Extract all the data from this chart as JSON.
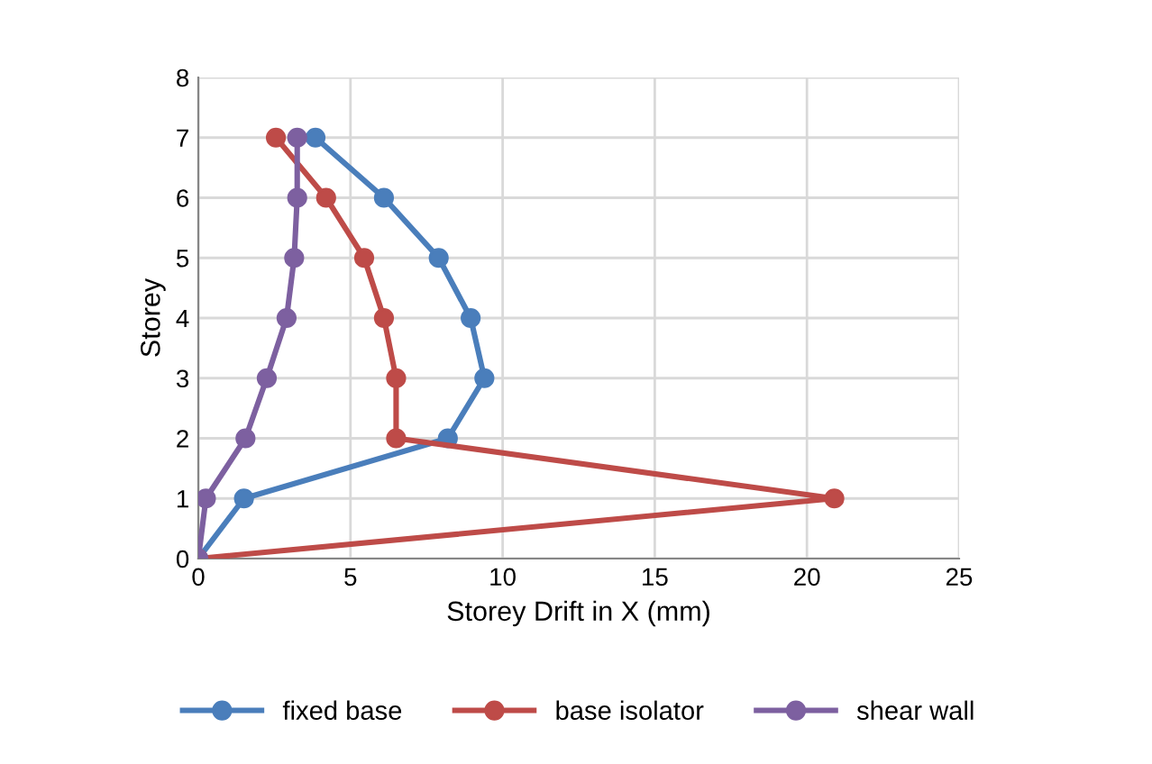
{
  "chart_data": {
    "type": "line",
    "xlabel": "Storey Drift in X (mm)",
    "ylabel": "Storey",
    "xlim": [
      0,
      25
    ],
    "xticks": [
      0,
      5,
      10,
      15,
      20,
      25
    ],
    "ylim": [
      0,
      8
    ],
    "yticks": [
      0,
      1,
      2,
      3,
      4,
      5,
      6,
      7,
      8
    ],
    "grid": true,
    "legend": "bottom",
    "marker": "circle",
    "line_style": "solid",
    "series": [
      {
        "name": "fixed base",
        "color": "#4a7ebb",
        "x": [
          0,
          1.5,
          8.2,
          9.4,
          8.95,
          7.9,
          6.1,
          3.85
        ],
        "values": [
          0,
          1,
          2,
          3,
          4,
          5,
          6,
          7
        ]
      },
      {
        "name": "base isolator",
        "color": "#be4b48",
        "x": [
          0,
          20.9,
          6.5,
          6.5,
          6.1,
          5.45,
          4.2,
          2.55
        ],
        "values": [
          0,
          1,
          2,
          3,
          4,
          5,
          6,
          7
        ]
      },
      {
        "name": "shear wall",
        "color": "#7d60a0",
        "x": [
          0,
          0.25,
          1.55,
          2.25,
          2.9,
          3.15,
          3.25,
          3.25
        ],
        "values": [
          0,
          1,
          2,
          3,
          4,
          5,
          6,
          7
        ]
      }
    ]
  }
}
